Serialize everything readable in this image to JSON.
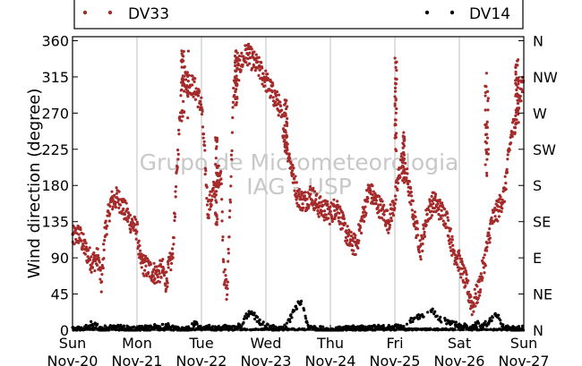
{
  "chart_data": {
    "type": "scatter",
    "ylabel": "Wind direction (degree)",
    "ylim": [
      0,
      365
    ],
    "yticks": [
      0,
      45,
      90,
      135,
      180,
      225,
      270,
      315,
      360
    ],
    "ytick_labels": [
      "0",
      "45",
      "90",
      "135",
      "180",
      "225",
      "270",
      "315",
      "360"
    ],
    "y2tick_labels": [
      "N",
      "NE",
      "E",
      "SE",
      "S",
      "SW",
      "W",
      "NW",
      "N"
    ],
    "xlim": [
      0,
      7
    ],
    "x_unit": "days from Sun Nov-20 00:00",
    "x_ticks": [
      {
        "day": "Sun",
        "date": "Nov-20"
      },
      {
        "day": "Mon",
        "date": "Nov-21"
      },
      {
        "day": "Tue",
        "date": "Nov-22"
      },
      {
        "day": "Wed",
        "date": "Nov-23"
      },
      {
        "day": "Thu",
        "date": "Nov-24"
      },
      {
        "day": "Fri",
        "date": "Nov-25"
      },
      {
        "day": "Sat",
        "date": "Nov-26"
      },
      {
        "day": "Sun",
        "date": "Nov-27"
      }
    ],
    "grid": "vertical",
    "legend_position": "top",
    "watermark": [
      "Grupo de Micrometeorologia",
      "IAG - USP"
    ],
    "series": [
      {
        "name": "DV33",
        "color": "#a52a2a",
        "trace": [
          [
            0.0,
            115
          ],
          [
            0.1,
            120
          ],
          [
            0.2,
            100
          ],
          [
            0.3,
            85
          ],
          [
            0.4,
            90
          ],
          [
            0.45,
            55
          ],
          [
            0.5,
            120
          ],
          [
            0.6,
            160
          ],
          [
            0.7,
            165
          ],
          [
            0.8,
            150
          ],
          [
            0.9,
            135
          ],
          [
            1.0,
            125
          ],
          [
            1.05,
            85
          ],
          [
            1.2,
            75
          ],
          [
            1.3,
            70
          ],
          [
            1.4,
            75
          ],
          [
            1.45,
            60
          ],
          [
            1.5,
            80
          ],
          [
            1.55,
            90
          ],
          [
            1.7,
            320
          ],
          [
            1.8,
            310
          ],
          [
            1.9,
            300
          ],
          [
            2.0,
            280
          ],
          [
            2.1,
            150
          ],
          [
            2.2,
            175
          ],
          [
            2.3,
            200
          ],
          [
            2.35,
            70
          ],
          [
            2.4,
            45
          ],
          [
            2.5,
            300
          ],
          [
            2.6,
            330
          ],
          [
            2.7,
            345
          ],
          [
            2.8,
            335
          ],
          [
            2.9,
            325
          ],
          [
            3.0,
            310
          ],
          [
            3.1,
            295
          ],
          [
            3.2,
            280
          ],
          [
            3.3,
            240
          ],
          [
            3.4,
            200
          ],
          [
            3.5,
            165
          ],
          [
            3.6,
            160
          ],
          [
            3.7,
            170
          ],
          [
            3.8,
            155
          ],
          [
            3.9,
            150
          ],
          [
            4.0,
            145
          ],
          [
            4.1,
            155
          ],
          [
            4.2,
            130
          ],
          [
            4.3,
            110
          ],
          [
            4.4,
            105
          ],
          [
            4.5,
            140
          ],
          [
            4.6,
            175
          ],
          [
            4.7,
            160
          ],
          [
            4.8,
            150
          ],
          [
            4.9,
            135
          ],
          [
            5.0,
            160
          ],
          [
            5.1,
            210
          ],
          [
            5.2,
            185
          ],
          [
            5.3,
            140
          ],
          [
            5.4,
            100
          ],
          [
            5.5,
            145
          ],
          [
            5.6,
            160
          ],
          [
            5.7,
            150
          ],
          [
            5.8,
            140
          ],
          [
            5.9,
            100
          ],
          [
            6.0,
            85
          ],
          [
            6.1,
            60
          ],
          [
            6.2,
            30
          ],
          [
            6.3,
            50
          ],
          [
            6.4,
            90
          ],
          [
            6.5,
            135
          ],
          [
            6.6,
            150
          ],
          [
            6.7,
            170
          ],
          [
            6.8,
            240
          ],
          [
            6.9,
            270
          ],
          [
            7.0,
            320
          ]
        ],
        "bursts": [
          [
            1.68,
            1.8,
            260,
            360
          ],
          [
            2.21,
            2.25,
            130,
            240
          ],
          [
            2.52,
            2.56,
            280,
            350
          ],
          [
            3.28,
            3.33,
            220,
            290
          ],
          [
            5.0,
            5.03,
            220,
            340
          ],
          [
            5.12,
            5.15,
            180,
            250
          ],
          [
            6.4,
            6.45,
            190,
            320
          ],
          [
            6.87,
            6.92,
            250,
            340
          ]
        ]
      },
      {
        "name": "DV14",
        "color": "#000000",
        "trace": [
          [
            0.0,
            1
          ],
          [
            0.22,
            4
          ],
          [
            0.3,
            8
          ],
          [
            0.45,
            1
          ],
          [
            0.6,
            4
          ],
          [
            1.0,
            1
          ],
          [
            1.45,
            6
          ],
          [
            1.65,
            0
          ],
          [
            1.8,
            1
          ],
          [
            1.9,
            8
          ],
          [
            2.0,
            1
          ],
          [
            2.05,
            6
          ],
          [
            2.2,
            1
          ],
          [
            2.35,
            3
          ],
          [
            2.45,
            2
          ],
          [
            2.6,
            5
          ],
          [
            2.65,
            12
          ],
          [
            2.7,
            18
          ],
          [
            2.75,
            22
          ],
          [
            2.8,
            20
          ],
          [
            2.85,
            15
          ],
          [
            2.9,
            10
          ],
          [
            3.0,
            5
          ],
          [
            3.1,
            3
          ],
          [
            3.2,
            2
          ],
          [
            3.3,
            4
          ],
          [
            3.35,
            10
          ],
          [
            3.4,
            18
          ],
          [
            3.45,
            26
          ],
          [
            3.5,
            32
          ],
          [
            3.55,
            35
          ],
          [
            3.6,
            20
          ],
          [
            3.65,
            5
          ],
          [
            3.8,
            2
          ],
          [
            4.0,
            0
          ],
          [
            4.5,
            3
          ],
          [
            5.0,
            3
          ],
          [
            5.6,
            25
          ],
          [
            5.65,
            15
          ],
          [
            6.2,
            2
          ],
          [
            6.3,
            10
          ],
          [
            6.35,
            4
          ],
          [
            6.6,
            20
          ],
          [
            6.65,
            10
          ],
          [
            6.7,
            3
          ],
          [
            6.9,
            1
          ],
          [
            7.0,
            2
          ]
        ]
      }
    ]
  }
}
